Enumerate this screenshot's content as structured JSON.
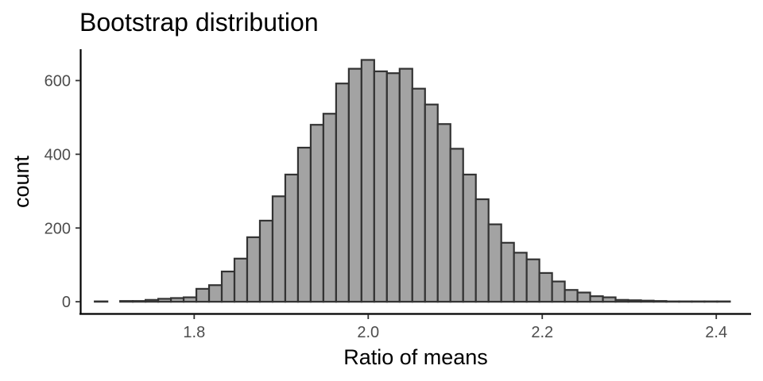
{
  "chart_data": {
    "type": "bar",
    "title": "Bootstrap distribution",
    "xlabel": "Ratio of means",
    "ylabel": "count",
    "xlim": [
      1.67,
      2.44
    ],
    "ylim": [
      -32,
      685
    ],
    "x_ticks": [
      1.8,
      2.0,
      2.2,
      2.4
    ],
    "x_tick_labels": [
      "1.8",
      "2.0",
      "2.2",
      "2.4"
    ],
    "y_ticks": [
      0,
      200,
      400,
      600
    ],
    "y_tick_labels": [
      "0",
      "200",
      "400",
      "600"
    ],
    "bin_width": 0.0146,
    "bin_centers": [
      1.693,
      1.7076,
      1.7222,
      1.7368,
      1.7514,
      1.766,
      1.7806,
      1.7952,
      1.8098,
      1.8244,
      1.839,
      1.8536,
      1.8682,
      1.8828,
      1.8974,
      1.912,
      1.9266,
      1.9412,
      1.9558,
      1.9704,
      1.985,
      1.9996,
      2.0142,
      2.0288,
      2.0434,
      2.058,
      2.0726,
      2.0872,
      2.1018,
      2.1164,
      2.131,
      2.1456,
      2.1602,
      2.1748,
      2.1894,
      2.204,
      2.2186,
      2.2332,
      2.2478,
      2.2624,
      2.277,
      2.2916,
      2.3062,
      2.3208,
      2.3354,
      2.35,
      2.3646,
      2.3792,
      2.3938,
      2.4084
    ],
    "values": [
      1,
      0,
      2,
      2,
      5,
      8,
      10,
      12,
      35,
      45,
      82,
      117,
      175,
      220,
      286,
      345,
      418,
      480,
      510,
      592,
      632,
      656,
      625,
      620,
      632,
      578,
      535,
      482,
      415,
      345,
      278,
      210,
      160,
      133,
      115,
      78,
      55,
      32,
      25,
      15,
      12,
      5,
      4,
      3,
      2,
      1,
      1,
      1,
      1,
      1
    ],
    "grid": false,
    "colors": {
      "bar_fill": "#a3a3a3",
      "bar_stroke": "#333333"
    }
  }
}
